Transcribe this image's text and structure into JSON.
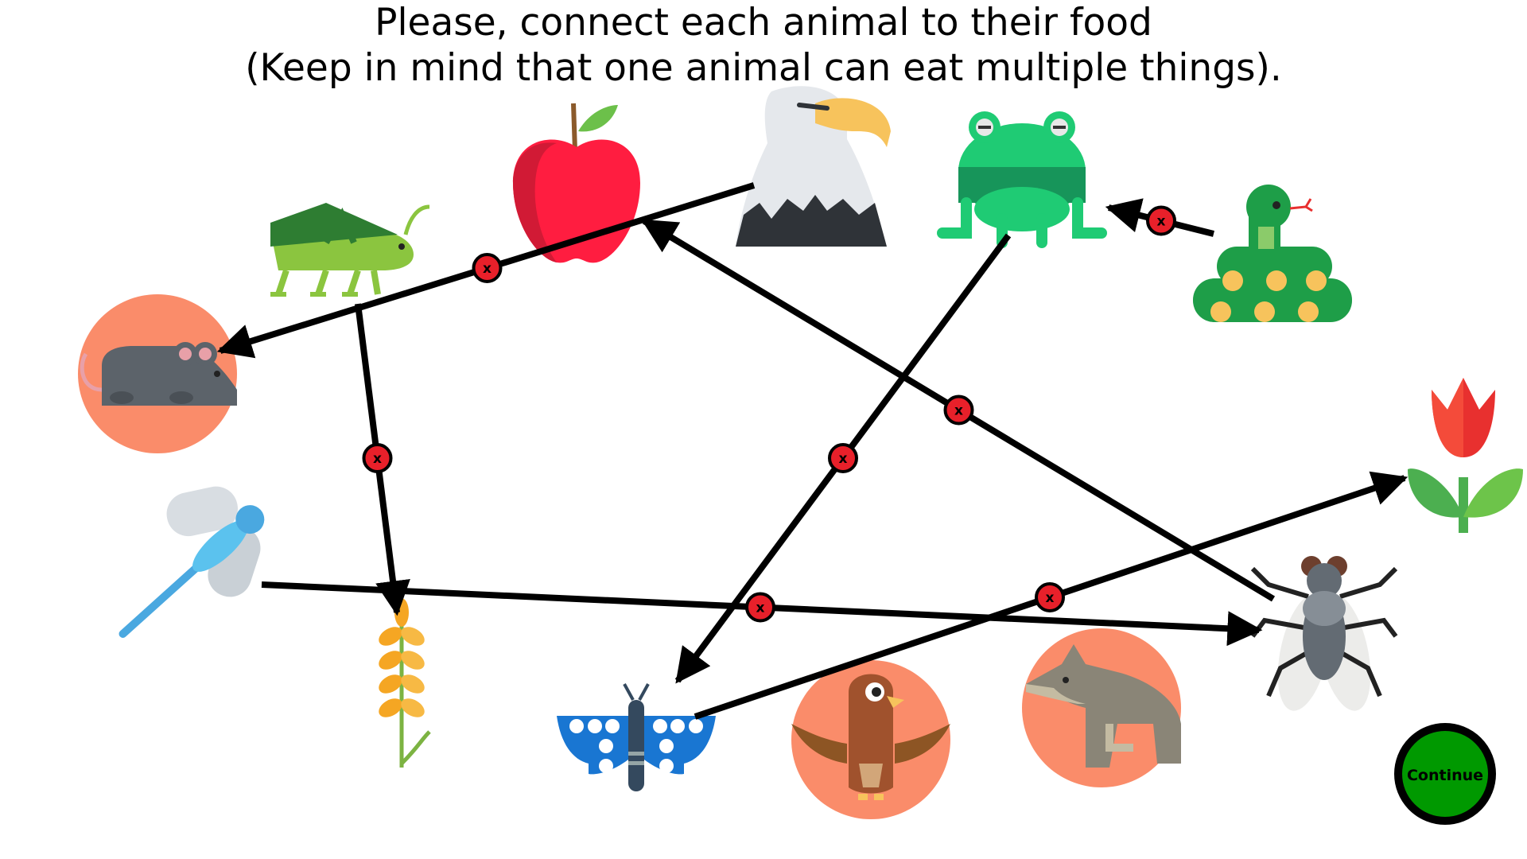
{
  "instructions": {
    "line1": "Please, connect each animal to their food",
    "line2": "(Keep in mind that one animal can eat multiple things)."
  },
  "items": [
    {
      "id": "apple",
      "kind": "food"
    },
    {
      "id": "eagle",
      "kind": "animal"
    },
    {
      "id": "frog",
      "kind": "animal"
    },
    {
      "id": "snake",
      "kind": "animal"
    },
    {
      "id": "grasshopper",
      "kind": "animal"
    },
    {
      "id": "mouse",
      "kind": "animal",
      "badge": true
    },
    {
      "id": "tulip",
      "kind": "food"
    },
    {
      "id": "dragonfly",
      "kind": "animal"
    },
    {
      "id": "wheat",
      "kind": "food"
    },
    {
      "id": "fly",
      "kind": "animal"
    },
    {
      "id": "butterfly",
      "kind": "animal"
    },
    {
      "id": "hawk",
      "kind": "animal",
      "badge": true
    },
    {
      "id": "wolf",
      "kind": "animal",
      "badge": true
    }
  ],
  "connections": [
    {
      "from": "eagle",
      "to": "mouse"
    },
    {
      "from": "grasshopper",
      "to": "wheat"
    },
    {
      "from": "fly",
      "to": "apple"
    },
    {
      "from": "frog",
      "to": "butterfly"
    },
    {
      "from": "snake",
      "to": "frog"
    },
    {
      "from": "dragonfly",
      "to": "fly"
    },
    {
      "from": "butterfly",
      "to": "tulip"
    }
  ],
  "remove_marker_label": "x",
  "continue_button": {
    "label": "Continue"
  },
  "colors": {
    "badge_bg": "#FA8C6A",
    "remove_marker": "#E8202A",
    "continue_bg": "#009900",
    "line": "#000000"
  }
}
